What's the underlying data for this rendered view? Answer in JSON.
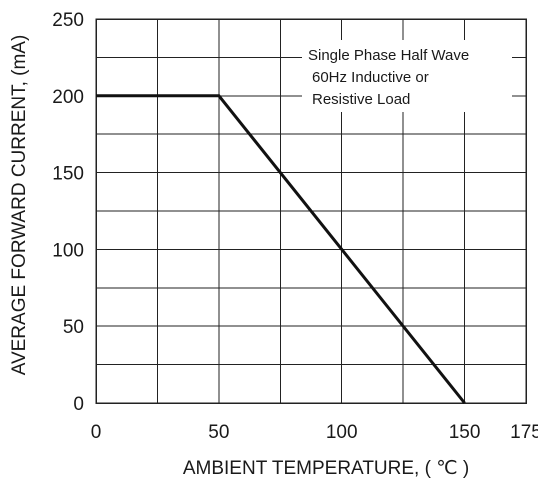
{
  "chart_data": {
    "type": "line",
    "xlabel": "AMBIENT TEMPERATURE, ( ℃ )",
    "ylabel": "AVERAGE FORWARD CURRENT, (mA)",
    "xlim": [
      0,
      175
    ],
    "ylim": [
      0,
      250
    ],
    "x_ticks": [
      0,
      50,
      100,
      150,
      175
    ],
    "x_tick_labels": [
      "0",
      "50",
      "100",
      "150",
      "175"
    ],
    "y_ticks": [
      0,
      50,
      100,
      150,
      200,
      250
    ],
    "y_tick_labels": [
      "0",
      "50",
      "100",
      "150",
      "200",
      "250"
    ],
    "grid": true,
    "grid_x_step": 25,
    "grid_y_step": 25,
    "series": [
      {
        "x": [
          0,
          50,
          150
        ],
        "y": [
          200,
          200,
          0
        ],
        "color": "#111111"
      }
    ],
    "annotation": {
      "lines": [
        "Single Phase Half Wave",
        "60Hz Inductive or",
        "Resistive Load"
      ],
      "placement": "top-right"
    }
  }
}
